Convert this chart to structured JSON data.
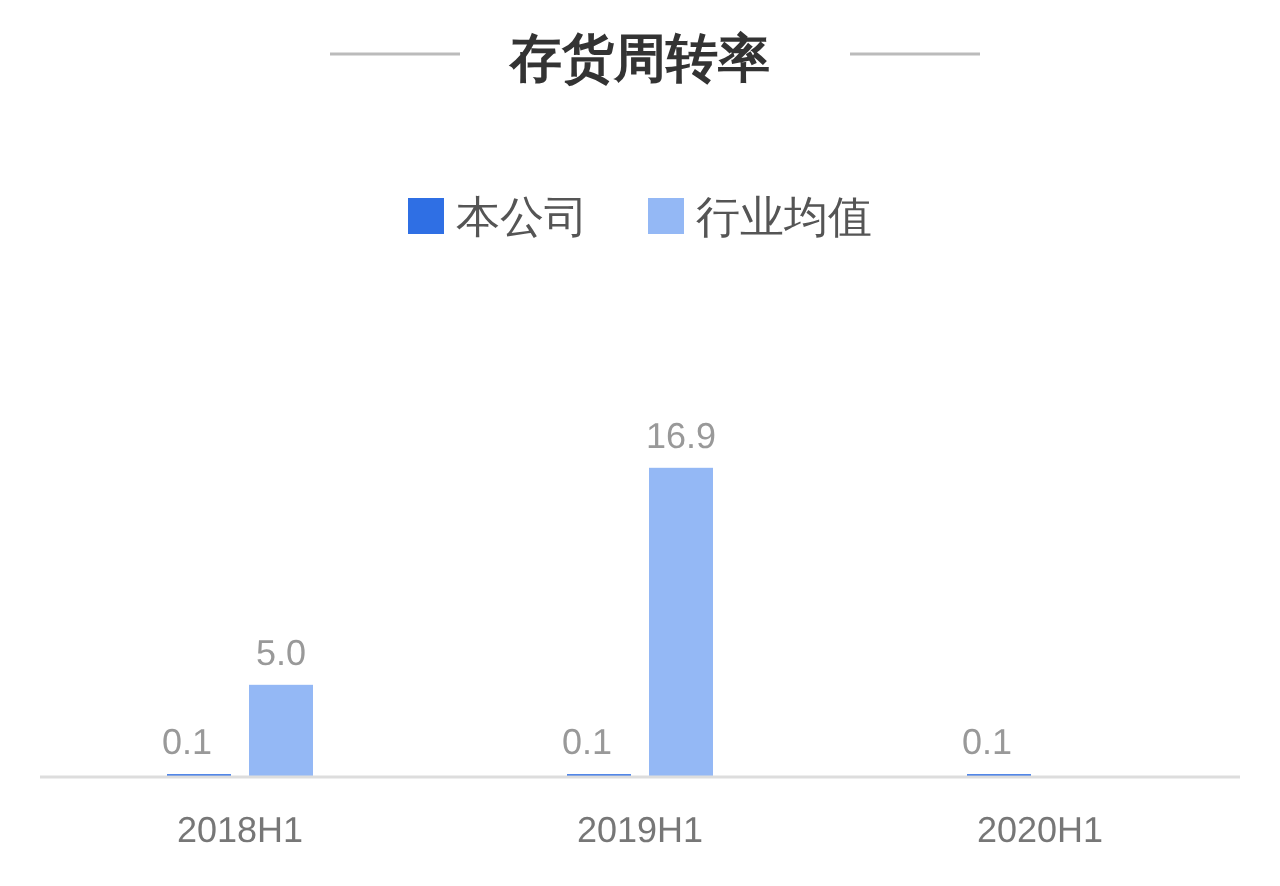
{
  "chart_data": {
    "type": "bar",
    "title": "存货周转率",
    "categories": [
      "2018H1",
      "2019H1",
      "2020H1"
    ],
    "series": [
      {
        "name": "本公司",
        "color": "#2f6fe4",
        "values": [
          0.1,
          0.1,
          0.1
        ],
        "value_labels": [
          "0.1",
          "0.1",
          "0.1"
        ]
      },
      {
        "name": "行业均值",
        "color": "#94b8f5",
        "values": [
          5.0,
          16.9,
          null
        ],
        "value_labels": [
          "5.0",
          "16.9",
          null
        ]
      }
    ],
    "legend": "top"
  }
}
